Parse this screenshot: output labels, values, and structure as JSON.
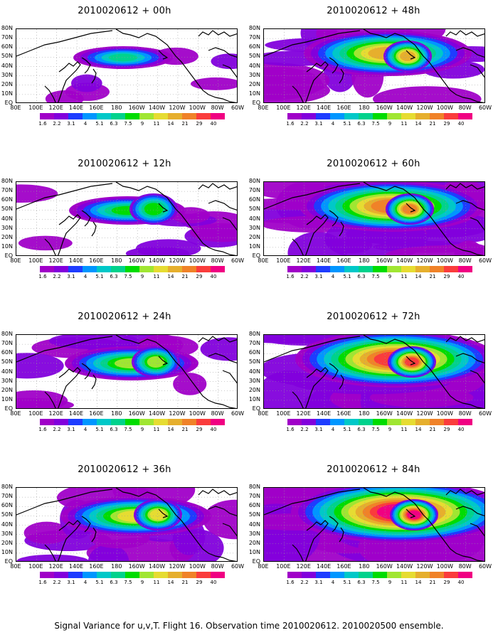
{
  "panels": [
    {
      "title": "2010020612 + 00h",
      "col": 0,
      "row": 0,
      "level": 0
    },
    {
      "title": "2010020612 + 48h",
      "col": 1,
      "row": 0,
      "level": 4
    },
    {
      "title": "2010020612 + 12h",
      "col": 0,
      "row": 1,
      "level": 1
    },
    {
      "title": "2010020612 + 60h",
      "col": 1,
      "row": 1,
      "level": 5
    },
    {
      "title": "2010020612 + 24h",
      "col": 0,
      "row": 2,
      "level": 2
    },
    {
      "title": "2010020612 + 72h",
      "col": 1,
      "row": 2,
      "level": 6
    },
    {
      "title": "2010020612 + 36h",
      "col": 0,
      "row": 3,
      "level": 3
    },
    {
      "title": "2010020612 + 84h",
      "col": 1,
      "row": 3,
      "level": 7
    }
  ],
  "y_labels": [
    "80N",
    "70N",
    "60N",
    "50N",
    "40N",
    "30N",
    "20N",
    "10N",
    "EQ"
  ],
  "x_labels": [
    "80E",
    "100E",
    "120E",
    "140E",
    "160E",
    "180",
    "160W",
    "140W",
    "120W",
    "100W",
    "80W",
    "60W"
  ],
  "colorbar": {
    "labels": [
      "1.6",
      "2.2",
      "3.1",
      "4",
      "5.1",
      "6.3",
      "7.5",
      "9",
      "11",
      "14",
      "21",
      "29",
      "40"
    ],
    "colors": [
      "#a000c8",
      "#8200dc",
      "#1e3cff",
      "#0096ff",
      "#00c8c8",
      "#00d28c",
      "#00dc00",
      "#a0e632",
      "#e6dc32",
      "#e6af2d",
      "#f08228",
      "#fa3c3c",
      "#f00082"
    ]
  },
  "caption": "Signal Variance for u,v,T. Flight 16. Observation time 2010020612. 2010020500 ensemble."
}
